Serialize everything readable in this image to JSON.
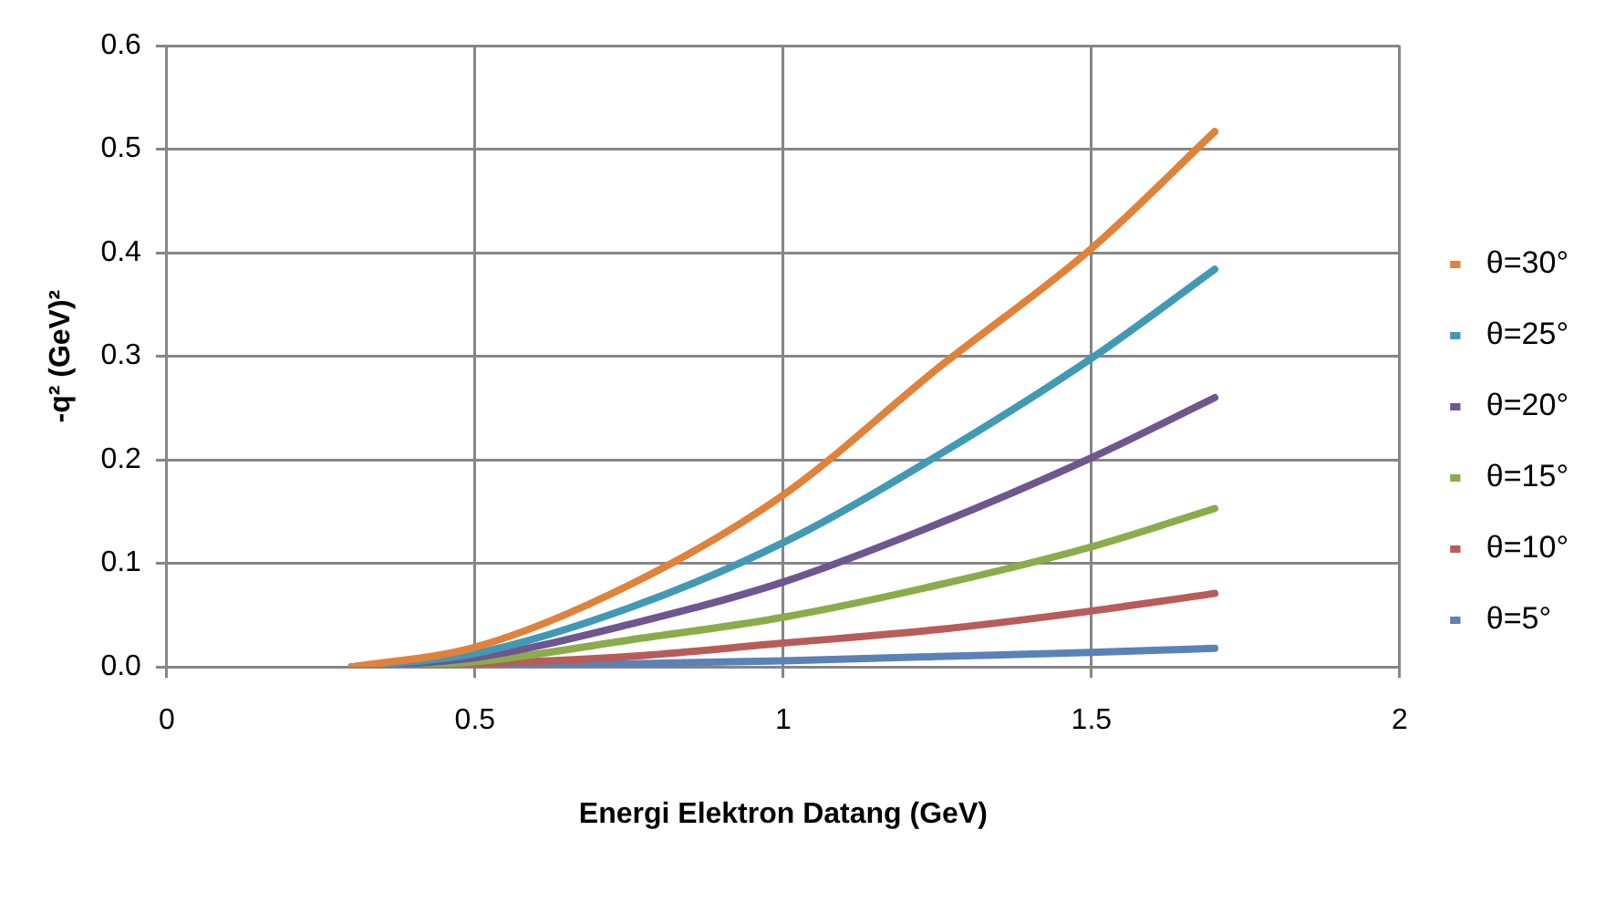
{
  "chart_data": {
    "type": "line",
    "xlabel": "Energi Elektron Datang (GeV)",
    "ylabel": "-q² (GeV)²",
    "x": [
      0.3,
      0.5,
      0.75,
      1,
      1.25,
      1.5,
      1.7
    ],
    "xlim": [
      0,
      2
    ],
    "xticks": [
      0,
      0.5,
      1,
      1.5,
      2
    ],
    "ylim": [
      0,
      0.6
    ],
    "yticks": [
      {
        "value": 0,
        "label": "0.0"
      },
      0.1,
      0.2,
      0.3,
      0.4,
      0.5,
      0.6
    ],
    "grid": true,
    "legend": "right",
    "marker": "none",
    "line_style": "solid",
    "series": [
      {
        "name": "θ=30°",
        "color": "#e0823a",
        "values": [
          0,
          0.019,
          0.079,
          0.166,
          0.288,
          0.404,
          0.517
        ]
      },
      {
        "name": "θ=25°",
        "color": "#4199b5",
        "values": [
          0,
          0.013,
          0.057,
          0.12,
          0.204,
          0.298,
          0.384
        ]
      },
      {
        "name": "θ=20°",
        "color": "#6f568f",
        "values": [
          0,
          0.009,
          0.041,
          0.082,
          0.138,
          0.202,
          0.26
        ]
      },
      {
        "name": "θ=15°",
        "color": "#8aac4a",
        "values": [
          0,
          0.005,
          0.026,
          0.048,
          0.079,
          0.116,
          0.153
        ]
      },
      {
        "name": "θ=10°",
        "color": "#b85c5a",
        "values": [
          0,
          0.003,
          0.01,
          0.023,
          0.036,
          0.054,
          0.071
        ]
      },
      {
        "name": "θ=5°",
        "color": "#5b82b8",
        "values": [
          0,
          0.001,
          0.003,
          0.006,
          0.01,
          0.014,
          0.018
        ]
      }
    ]
  }
}
